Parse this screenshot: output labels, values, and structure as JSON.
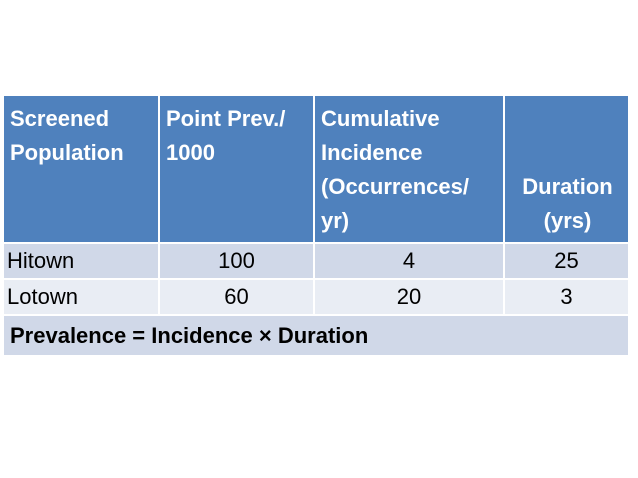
{
  "table": {
    "headers": {
      "screened": [
        "Screened",
        "Population"
      ],
      "point_prev": [
        "Point Prev./",
        "1000"
      ],
      "cumulative": [
        "Cumulative",
        "Incidence",
        "(Occurrences/",
        "yr)"
      ],
      "duration": [
        "Duration",
        "(yrs)"
      ]
    },
    "rows": [
      {
        "name": "Hitown",
        "point_prev": "100",
        "incidence": "4",
        "duration": "25"
      },
      {
        "name": "Lotown",
        "point_prev": "60",
        "incidence": "20",
        "duration": "3"
      }
    ],
    "formula": "Prevalence = Incidence × Duration"
  },
  "colors": {
    "header_bg": "#4f81bd",
    "row_dark": "#d0d8e8",
    "row_light": "#e9edf4"
  }
}
